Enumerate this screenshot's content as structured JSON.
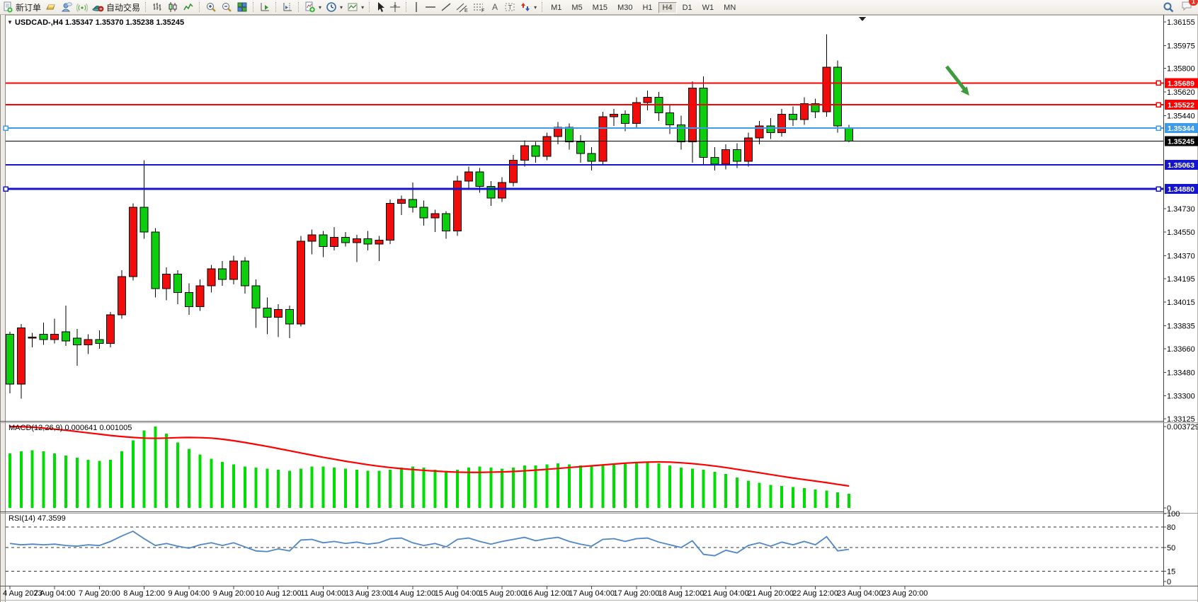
{
  "toolbar": {
    "new_order_label": "新订单",
    "autotrading_label": "自动交易",
    "timeframes": [
      "M1",
      "M5",
      "M15",
      "M30",
      "H1",
      "H4",
      "D1",
      "W1",
      "MN"
    ],
    "active_timeframe": "H4",
    "notification_count": "1"
  },
  "chart": {
    "title": "USDCAD-,H4",
    "ohlc_text": "1.35347 1.35370 1.35238 1.35245",
    "dropdown_glyph": "▼"
  },
  "colors": {
    "bull": "#F20D0D",
    "bear": "#0CCE0C",
    "wick": "#000000",
    "macd_hist": "#00DD00",
    "macd_signal": "#FF0000",
    "rsi_line": "#4F86C8",
    "level_dash": "#333333",
    "arrow": "#3E9B3C",
    "line_red": "#FF0000",
    "line_lightblue": "#3E9BEA",
    "line_blue": "#1515CE",
    "line_black": "#000000"
  },
  "price_axis": {
    "ticks": [
      "1.36155",
      "1.35975",
      "1.35800",
      "1.35620",
      "1.35440",
      "1.34730",
      "1.34550",
      "1.34370",
      "1.34195",
      "1.34015",
      "1.33835",
      "1.33660",
      "1.33480",
      "1.33300",
      "1.33125"
    ],
    "badges": [
      {
        "value": "1.35689",
        "color": "#FF0000"
      },
      {
        "value": "1.35522",
        "color": "#FF0000"
      },
      {
        "value": "1.35344",
        "color": "#3E9BEA"
      },
      {
        "value": "1.35245",
        "color": "#000000"
      },
      {
        "value": "1.35063",
        "color": "#1515CE"
      },
      {
        "value": "1.34880",
        "color": "#1515CE"
      }
    ]
  },
  "hlines": [
    {
      "price": 1.35689,
      "color": "#FF0000",
      "w": 2,
      "left_handle": false,
      "right_handle": true
    },
    {
      "price": 1.35522,
      "color": "#FF0000",
      "w": 2,
      "left_handle": false,
      "right_handle": true
    },
    {
      "price": 1.35344,
      "color": "#3E9BEA",
      "w": 2,
      "left_handle": true,
      "right_handle": true
    },
    {
      "price": 1.35245,
      "color": "#000000",
      "w": 1,
      "left_handle": false,
      "right_handle": false
    },
    {
      "price": 1.35063,
      "color": "#1515CE",
      "w": 2,
      "left_handle": false,
      "right_handle": false
    },
    {
      "price": 1.3488,
      "color": "#1515CE",
      "w": 3,
      "left_handle": true,
      "right_handle": true
    }
  ],
  "macd": {
    "label": "MACD(12,26,9)",
    "value_main": "0.000641",
    "value_signal": "0.001005",
    "axis": [
      "0.003729",
      "0"
    ]
  },
  "rsi": {
    "label": "RSI(14)",
    "value": "47.3599",
    "axis": [
      "100",
      "80",
      "50",
      "15",
      "0"
    ],
    "levels": [
      80,
      50,
      15
    ]
  },
  "annotation": {
    "type": "arrow",
    "color": "#3E9B3C",
    "note": "green arrow pointing down-right at resistance 1.35522"
  },
  "chart_data": {
    "type": "candlestick",
    "symbol": "USDCAD",
    "period": "H4",
    "ylim": [
      1.33125,
      1.36155
    ],
    "times": [
      "4 Aug 2023",
      "7 Aug 04:00",
      "7 Aug 20:00",
      "8 Aug 12:00",
      "9 Aug 04:00",
      "9 Aug 20:00",
      "10 Aug 12:00",
      "11 Aug 04:00",
      "13 Aug 23:00",
      "14 Aug 12:00",
      "15 Aug 04:00",
      "15 Aug 20:00",
      "16 Aug 12:00",
      "17 Aug 04:00",
      "17 Aug 20:00",
      "18 Aug 12:00",
      "21 Aug 04:00",
      "21 Aug 20:00",
      "22 Aug 12:00",
      "23 Aug 04:00",
      "23 Aug 20:00"
    ],
    "candles": [
      [
        1.3377,
        1.3379,
        1.3332,
        1.3339
      ],
      [
        1.3339,
        1.3385,
        1.3328,
        1.3382
      ],
      [
        1.3374,
        1.3378,
        1.3367,
        1.3375
      ],
      [
        1.3377,
        1.3386,
        1.3369,
        1.3373
      ],
      [
        1.3373,
        1.3389,
        1.337,
        1.3377
      ],
      [
        1.3379,
        1.3399,
        1.3368,
        1.3372
      ],
      [
        1.3374,
        1.3381,
        1.3353,
        1.3369
      ],
      [
        1.3369,
        1.3377,
        1.3362,
        1.3373
      ],
      [
        1.3373,
        1.338,
        1.3366,
        1.337
      ],
      [
        1.337,
        1.3394,
        1.3367,
        1.3392
      ],
      [
        1.3392,
        1.3426,
        1.3389,
        1.3421
      ],
      [
        1.3421,
        1.3477,
        1.3418,
        1.3474
      ],
      [
        1.3474,
        1.351,
        1.345,
        1.3455
      ],
      [
        1.3455,
        1.3458,
        1.3405,
        1.3412
      ],
      [
        1.3412,
        1.3428,
        1.3403,
        1.3423
      ],
      [
        1.3423,
        1.3426,
        1.34,
        1.3409
      ],
      [
        1.3409,
        1.3416,
        1.3392,
        1.3398
      ],
      [
        1.3398,
        1.3419,
        1.3395,
        1.3414
      ],
      [
        1.3414,
        1.343,
        1.3409,
        1.3427
      ],
      [
        1.3427,
        1.3433,
        1.3414,
        1.3419
      ],
      [
        1.3419,
        1.3437,
        1.3415,
        1.3433
      ],
      [
        1.3433,
        1.3436,
        1.3408,
        1.3414
      ],
      [
        1.3414,
        1.3419,
        1.3382,
        1.3397
      ],
      [
        1.3397,
        1.3405,
        1.3377,
        1.339
      ],
      [
        1.339,
        1.34,
        1.3375,
        1.3396
      ],
      [
        1.3396,
        1.3399,
        1.3374,
        1.3385
      ],
      [
        1.3385,
        1.3452,
        1.3383,
        1.3448
      ],
      [
        1.3448,
        1.3457,
        1.3438,
        1.3453
      ],
      [
        1.3453,
        1.3456,
        1.3436,
        1.3444
      ],
      [
        1.3444,
        1.3459,
        1.3441,
        1.3451
      ],
      [
        1.3451,
        1.3455,
        1.3444,
        1.3447
      ],
      [
        1.3447,
        1.3453,
        1.3432,
        1.345
      ],
      [
        1.345,
        1.3456,
        1.3441,
        1.3446
      ],
      [
        1.3446,
        1.3452,
        1.3433,
        1.3449
      ],
      [
        1.3449,
        1.348,
        1.3446,
        1.3477
      ],
      [
        1.3477,
        1.3483,
        1.3468,
        1.348
      ],
      [
        1.348,
        1.3493,
        1.347,
        1.3474
      ],
      [
        1.3474,
        1.3479,
        1.346,
        1.3466
      ],
      [
        1.3466,
        1.3472,
        1.3455,
        1.3469
      ],
      [
        1.3469,
        1.3471,
        1.345,
        1.3456
      ],
      [
        1.3456,
        1.3498,
        1.3452,
        1.3494
      ],
      [
        1.3494,
        1.3505,
        1.3488,
        1.3501
      ],
      [
        1.3501,
        1.3504,
        1.3485,
        1.349
      ],
      [
        1.349,
        1.3494,
        1.3475,
        1.3481
      ],
      [
        1.3481,
        1.3497,
        1.3478,
        1.3493
      ],
      [
        1.3493,
        1.3514,
        1.349,
        1.351
      ],
      [
        1.351,
        1.3525,
        1.3505,
        1.3521
      ],
      [
        1.3521,
        1.3524,
        1.3508,
        1.3513
      ],
      [
        1.3513,
        1.3531,
        1.351,
        1.3528
      ],
      [
        1.3528,
        1.3539,
        1.3522,
        1.3535
      ],
      [
        1.3535,
        1.3538,
        1.3518,
        1.3524
      ],
      [
        1.3524,
        1.3529,
        1.3508,
        1.3515
      ],
      [
        1.3515,
        1.352,
        1.3502,
        1.3509
      ],
      [
        1.3509,
        1.3547,
        1.3506,
        1.3543
      ],
      [
        1.3543,
        1.3549,
        1.3536,
        1.3545
      ],
      [
        1.3545,
        1.3548,
        1.3532,
        1.3538
      ],
      [
        1.3538,
        1.3558,
        1.3535,
        1.3554
      ],
      [
        1.3554,
        1.3563,
        1.3548,
        1.3558
      ],
      [
        1.3558,
        1.3562,
        1.354,
        1.3546
      ],
      [
        1.3546,
        1.3552,
        1.353,
        1.3537
      ],
      [
        1.3537,
        1.3544,
        1.3518,
        1.3524
      ],
      [
        1.3524,
        1.357,
        1.3508,
        1.3565
      ],
      [
        1.3565,
        1.3574,
        1.3506,
        1.3512
      ],
      [
        1.3512,
        1.352,
        1.3502,
        1.3507
      ],
      [
        1.3507,
        1.3522,
        1.3503,
        1.3518
      ],
      [
        1.3518,
        1.3523,
        1.3504,
        1.3509
      ],
      [
        1.3509,
        1.3531,
        1.3505,
        1.3527
      ],
      [
        1.3527,
        1.354,
        1.3522,
        1.3536
      ],
      [
        1.3536,
        1.3542,
        1.3526,
        1.3531
      ],
      [
        1.3531,
        1.3549,
        1.3528,
        1.3545
      ],
      [
        1.3545,
        1.3551,
        1.3536,
        1.3541
      ],
      [
        1.3541,
        1.3558,
        1.3537,
        1.3553
      ],
      [
        1.3553,
        1.3557,
        1.3542,
        1.3547
      ],
      [
        1.3547,
        1.3606,
        1.3543,
        1.3581
      ],
      [
        1.3581,
        1.3586,
        1.3531,
        1.3536
      ],
      [
        1.35347,
        1.3537,
        1.35238,
        1.35245
      ]
    ],
    "macd_hist_1e4": [
      25,
      26,
      26.5,
      26,
      25,
      24,
      23,
      22,
      21.5,
      22,
      26,
      31,
      35.5,
      37.3,
      34,
      30,
      27,
      24.5,
      22.5,
      21,
      20,
      19,
      18.5,
      18,
      17.5,
      17,
      18,
      19,
      19,
      18.5,
      18,
      17.5,
      17,
      17,
      17.5,
      18.5,
      19,
      18.5,
      17.5,
      17,
      17.5,
      18.5,
      19,
      18.5,
      18,
      18.5,
      19.5,
      19.5,
      20,
      20.5,
      20,
      19.5,
      19,
      19.5,
      20,
      20.5,
      21,
      21,
      20.5,
      19.5,
      18.5,
      18,
      17.5,
      16.5,
      15.5,
      14,
      12.5,
      11.5,
      10.5,
      10,
      9.5,
      9,
      8.5,
      8,
      7.2,
      6.41
    ],
    "macd_signal_1e4": [
      37.3,
      37.2,
      37,
      36.6,
      36.1,
      35.6,
      35,
      34.4,
      33.8,
      33.2,
      32.7,
      32.3,
      32,
      31.9,
      32,
      32.2,
      32.3,
      32.2,
      32,
      31.5,
      30.8,
      30,
      29.1,
      28.2,
      27.2,
      26.2,
      25.2,
      24.2,
      23.2,
      22.3,
      21.4,
      20.6,
      19.8,
      19.1,
      18.5,
      18,
      17.6,
      17.2,
      16.9,
      16.6,
      16.4,
      16.3,
      16.3,
      16.4,
      16.5,
      16.7,
      17,
      17.3,
      17.7,
      18.1,
      18.5,
      18.9,
      19.3,
      19.7,
      20.1,
      20.5,
      20.8,
      21,
      21.1,
      21,
      20.7,
      20.3,
      19.8,
      19.2,
      18.5,
      17.7,
      16.9,
      16.1,
      15.3,
      14.5,
      13.7,
      13,
      12.3,
      11.6,
      10.8,
      10.05
    ],
    "rsi_values": [
      56,
      54,
      55,
      54,
      55,
      53,
      52,
      54,
      53,
      59,
      67,
      74,
      63,
      53,
      56,
      52,
      49,
      54,
      57,
      53,
      57,
      51,
      45,
      44,
      48,
      45,
      61,
      62,
      57,
      59,
      56,
      58,
      55,
      57,
      63,
      64,
      57,
      53,
      56,
      51,
      62,
      64,
      59,
      55,
      59,
      62,
      65,
      60,
      63,
      65,
      59,
      55,
      52,
      62,
      63,
      59,
      63,
      64,
      58,
      54,
      50,
      60,
      40,
      38,
      46,
      42,
      53,
      57,
      52,
      58,
      54,
      59,
      54,
      66,
      45,
      47.3599
    ]
  }
}
